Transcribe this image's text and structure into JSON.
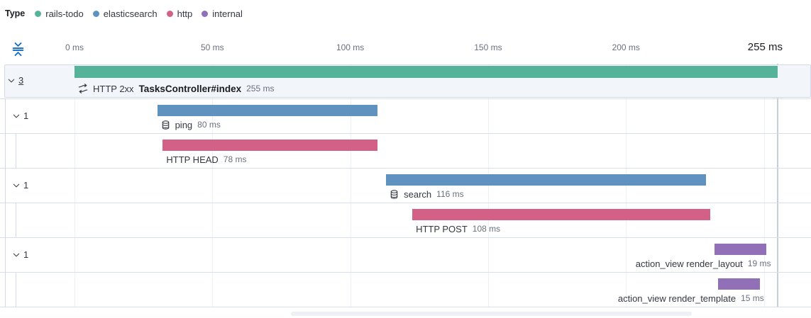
{
  "legend": {
    "title": "Type",
    "items": [
      {
        "label": "rails-todo",
        "color": "#54b399"
      },
      {
        "label": "elasticsearch",
        "color": "#6092c0"
      },
      {
        "label": "http",
        "color": "#d36086"
      },
      {
        "label": "internal",
        "color": "#9170b8"
      }
    ]
  },
  "axis": {
    "ticks": [
      {
        "label": "0 ms",
        "ms": 0
      },
      {
        "label": "50 ms",
        "ms": 50
      },
      {
        "label": "100 ms",
        "ms": 100
      },
      {
        "label": "150 ms",
        "ms": 150
      },
      {
        "label": "200 ms",
        "ms": 200
      },
      {
        "label": "255 ms",
        "ms": 255,
        "emphasis": true
      }
    ],
    "gridlines_ms": [
      0,
      50,
      100,
      150,
      200,
      250
    ],
    "trace_end_ms": 255,
    "fold_icon": "fold-icon"
  },
  "chart_data": {
    "type": "waterfall",
    "title": "Trace timeline waterfall",
    "x_unit": "ms",
    "xlim": [
      0,
      255
    ],
    "x_tick_labels": [
      "0 ms",
      "50 ms",
      "100 ms",
      "150 ms",
      "200 ms",
      "255 ms"
    ],
    "legend_title": "Type",
    "services": [
      {
        "name": "rails-todo",
        "color": "#54b399"
      },
      {
        "name": "elasticsearch",
        "color": "#6092c0"
      },
      {
        "name": "http",
        "color": "#d36086"
      },
      {
        "name": "internal",
        "color": "#9170b8"
      }
    ],
    "items": [
      {
        "name": "TasksController#index",
        "label_prefix": "HTTP 2xx",
        "service": "rails-todo",
        "start_ms": 0,
        "duration_ms": 255,
        "duration_label": "255 ms",
        "depth": 0,
        "children_count": "3",
        "icon": "merge-icon",
        "selected": true
      },
      {
        "name": "ping",
        "service": "elasticsearch",
        "start_ms": 30,
        "duration_ms": 80,
        "duration_label": "80 ms",
        "depth": 1,
        "children_count": "1",
        "icon": "database-icon"
      },
      {
        "name": "HTTP HEAD",
        "service": "http",
        "start_ms": 32,
        "duration_ms": 78,
        "duration_label": "78 ms",
        "depth": 2
      },
      {
        "name": "search",
        "service": "elasticsearch",
        "start_ms": 113,
        "duration_ms": 116,
        "duration_label": "116 ms",
        "depth": 1,
        "children_count": "1",
        "icon": "database-icon"
      },
      {
        "name": "HTTP POST",
        "service": "http",
        "start_ms": 122.5,
        "duration_ms": 108,
        "duration_label": "108 ms",
        "depth": 2
      },
      {
        "name": "action_view render_layout",
        "service": "internal",
        "start_ms": 232,
        "duration_ms": 19,
        "duration_label": "19 ms",
        "depth": 1,
        "children_count": "1"
      },
      {
        "name": "action_view render_template",
        "service": "internal",
        "start_ms": 233.5,
        "duration_ms": 15,
        "duration_label": "15 ms",
        "depth": 2
      }
    ]
  }
}
